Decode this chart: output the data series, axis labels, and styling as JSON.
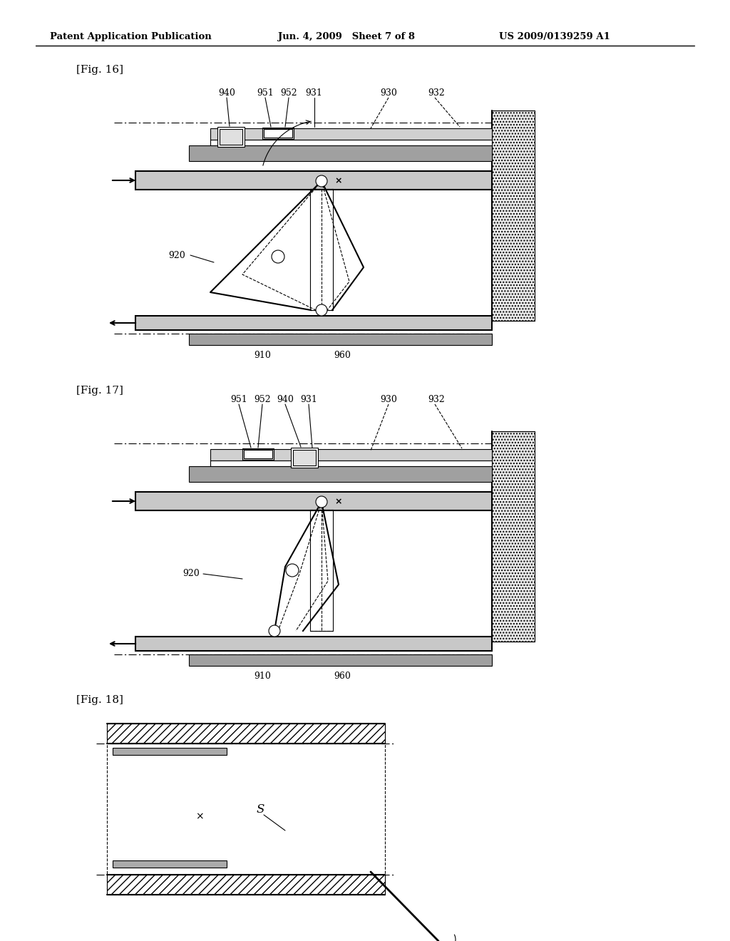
{
  "page_title_left": "Patent Application Publication",
  "page_title_mid": "Jun. 4, 2009   Sheet 7 of 8",
  "page_title_right": "US 2009/0139259 A1",
  "fig16_label": "[Fig. 16]",
  "fig17_label": "[Fig. 17]",
  "fig18_label": "[Fig. 18]",
  "background": "#ffffff",
  "line_color": "#000000"
}
